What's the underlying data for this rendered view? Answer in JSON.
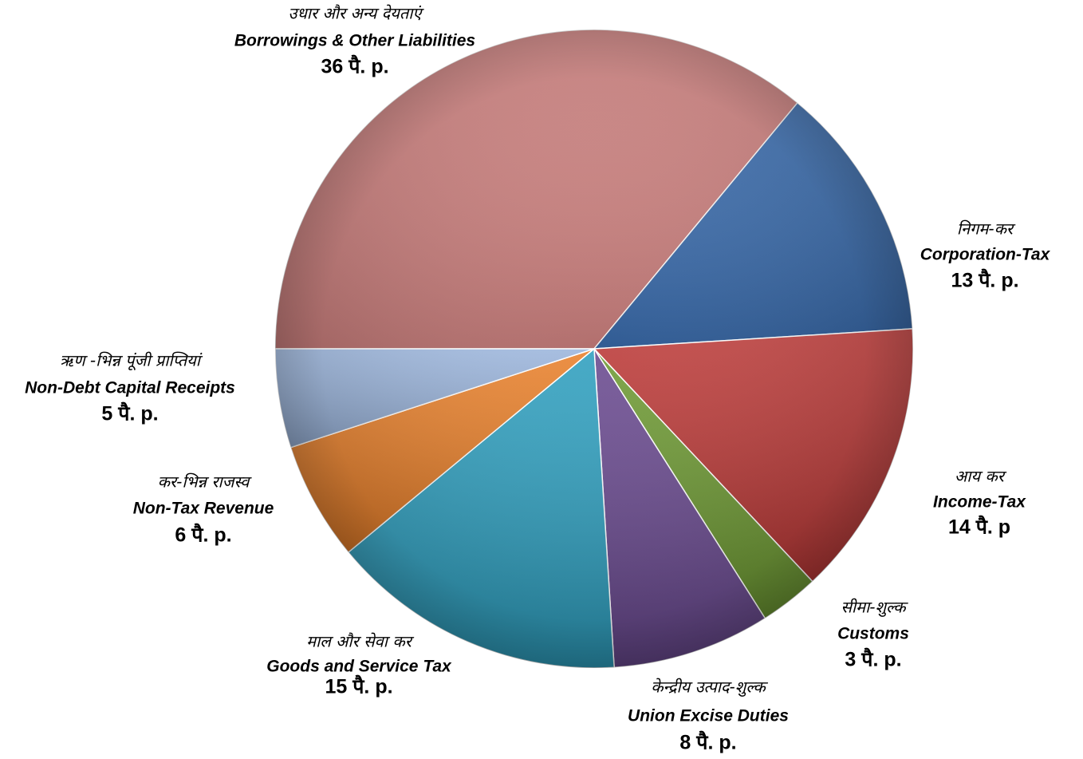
{
  "chart_data": {
    "type": "pie",
    "categories": [
      "Borrowings & Other Liabilities",
      "Corporation-Tax",
      "Income-Tax",
      "Customs",
      "Union Excise Duties",
      "Goods and Service Tax",
      "Non-Tax Revenue",
      "Non-Debt Capital Receipts"
    ],
    "labels_hi": [
      "उधार और अन्य देयताएं",
      "निगम-कर",
      "आय कर",
      "सीमा-शुल्क",
      "केन्द्रीय उत्पाद-शुल्क",
      "माल और सेवा कर",
      "कर-भिन्न राजस्व",
      "ऋण -भिन्न पूंजी प्राप्तियां"
    ],
    "values": [
      36,
      13,
      14,
      3,
      8,
      15,
      6,
      5
    ],
    "value_labels": [
      "36 पै. p.",
      "13 पै. p.",
      "14 पै. p",
      "3 पै. p.",
      "8 पै. p.",
      "15 पै. p.",
      "6 पै. p.",
      "5 पै. p."
    ],
    "colors": [
      "#d98886",
      "#3b6fb3",
      "#bd3a38",
      "#6e9a33",
      "#69498f",
      "#2e9fbf",
      "#e9802a",
      "#9bb5dc"
    ]
  }
}
